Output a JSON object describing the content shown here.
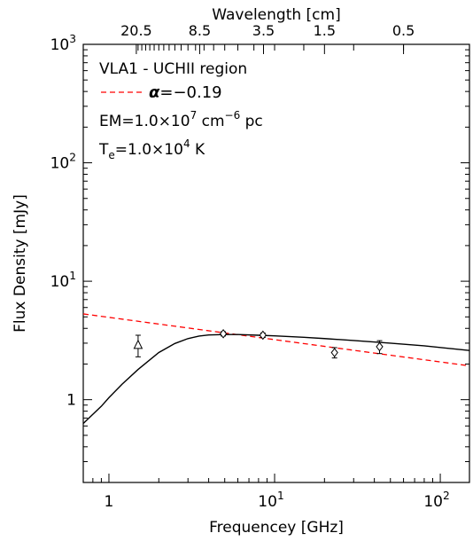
{
  "chart_data": {
    "type": "scatter",
    "xlabel": "Frequencey [GHz]",
    "ylabel": "Flux Density [mJy]",
    "top_axis_label": "Wavelength [cm]",
    "x_scale": "log",
    "y_scale": "log",
    "xlim": [
      0.7,
      150
    ],
    "ylim": [
      0.2,
      1000
    ],
    "x_tick_labels": [
      {
        "value": 1,
        "label": "1"
      },
      {
        "value": 10,
        "label": "10",
        "exponent": "1"
      },
      {
        "value": 100,
        "label": "10",
        "exponent": "2"
      }
    ],
    "y_tick_labels": [
      {
        "value": 1,
        "label": "1"
      },
      {
        "value": 10,
        "label": "10",
        "exponent": "1"
      },
      {
        "value": 100,
        "label": "10",
        "exponent": "2"
      },
      {
        "value": 1000,
        "label": "10",
        "exponent": "3"
      }
    ],
    "top_tick_labels": [
      {
        "wavelength_cm": 20.5,
        "label": "20.5"
      },
      {
        "wavelength_cm": 8.5,
        "label": "8.5"
      },
      {
        "wavelength_cm": 3.5,
        "label": "3.5"
      },
      {
        "wavelength_cm": 1.5,
        "label": "1.5"
      },
      {
        "wavelength_cm": 0.5,
        "label": "0.5"
      }
    ],
    "annotations": [
      {
        "kind": "text",
        "text": "VLA1 - UCHII region"
      },
      {
        "kind": "legend",
        "line": "dashed",
        "color": "#ff0000",
        "symbol": "α",
        "text": "=−0.19"
      },
      {
        "kind": "text",
        "base": "EM=1.0×10",
        "sup": "7",
        "unit": " cm",
        "unit_sup": "−6",
        "tail": " pc"
      },
      {
        "kind": "text",
        "base": "T",
        "sub": "e",
        "mid": "=1.0×10",
        "sup": "4",
        "tail": " K"
      }
    ],
    "series": [
      {
        "marker": "triangle",
        "points": [
          {
            "x": 1.5,
            "y": 2.9,
            "yerr_low": 0.6,
            "yerr_high": 0.6
          }
        ]
      },
      {
        "marker": "diamond",
        "points": [
          {
            "x": 4.9,
            "y": 3.6,
            "yerr_low": 0.15,
            "yerr_high": 0.15
          },
          {
            "x": 8.5,
            "y": 3.5,
            "yerr_low": 0.15,
            "yerr_high": 0.15
          },
          {
            "x": 23,
            "y": 2.5,
            "yerr_low": 0.25,
            "yerr_high": 0.25
          },
          {
            "x": 43,
            "y": 2.8,
            "yerr_low": 0.35,
            "yerr_high": 0.35
          }
        ]
      }
    ],
    "power_law_fit": {
      "alpha": -0.19,
      "style": "dashed",
      "color": "#ff0000",
      "x": [
        0.7,
        150
      ],
      "y": [
        5.3,
        1.93
      ]
    },
    "model_curve": {
      "style": "solid",
      "color": "#000000",
      "x": [
        0.7,
        0.9,
        1.0,
        1.2,
        1.5,
        2.0,
        2.5,
        3.0,
        3.5,
        4.0,
        5.0,
        6.0,
        8.0,
        10,
        15,
        20,
        30,
        50,
        80,
        150
      ],
      "y": [
        0.63,
        0.88,
        1.04,
        1.35,
        1.8,
        2.5,
        2.98,
        3.28,
        3.44,
        3.52,
        3.55,
        3.55,
        3.5,
        3.46,
        3.36,
        3.28,
        3.16,
        3.0,
        2.85,
        2.6
      ]
    }
  }
}
